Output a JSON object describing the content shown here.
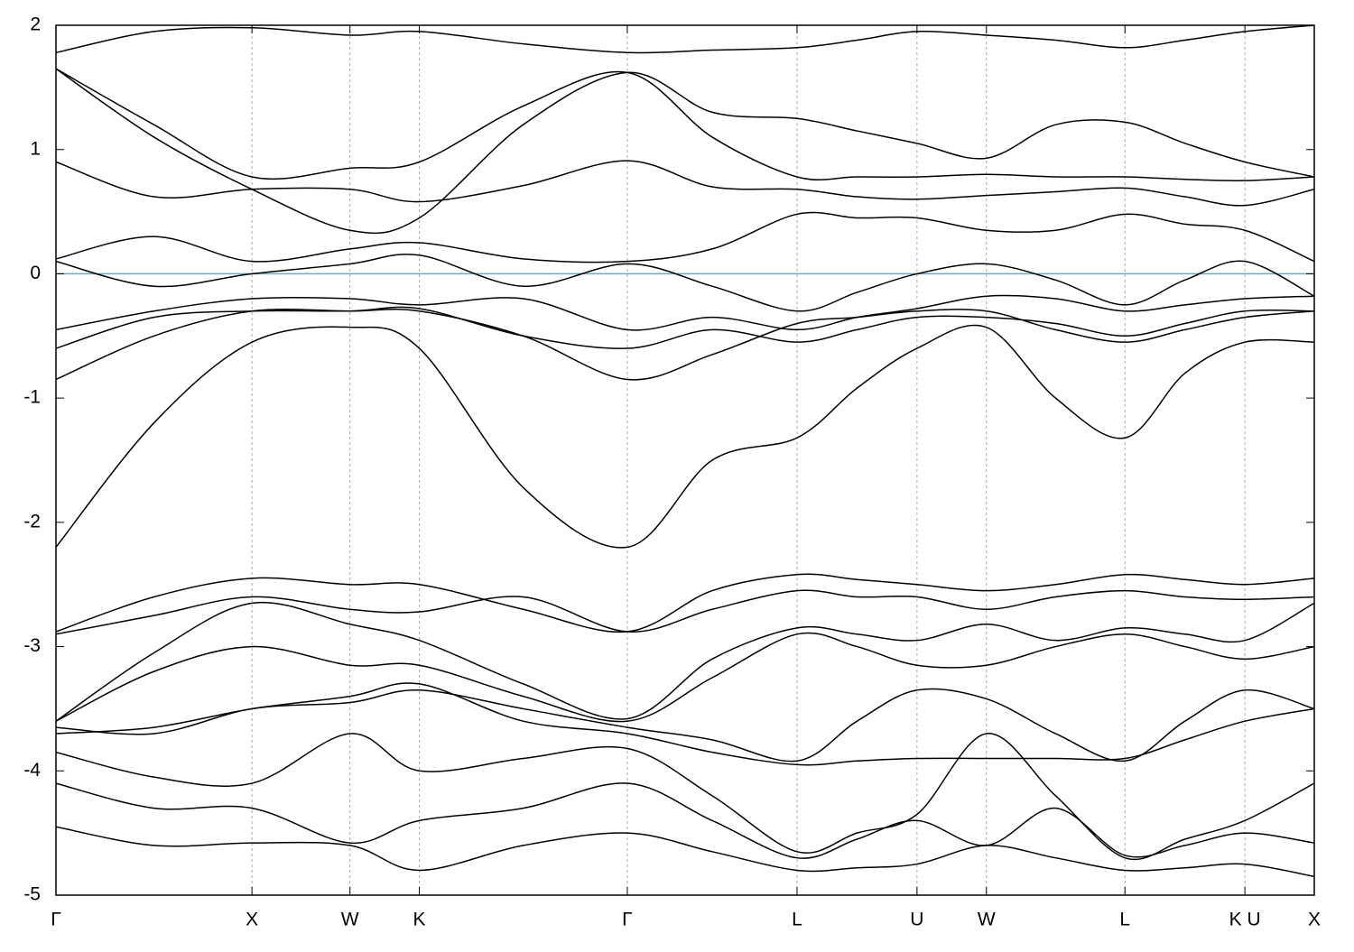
{
  "chart_data": {
    "type": "line",
    "x": [
      0,
      0.5,
      1,
      1.5,
      1.854,
      2.384,
      2.915,
      3.348,
      3.781,
      4.087,
      4.393,
      4.747,
      5.1,
      5.454,
      5.76,
      6.066,
      6.42
    ],
    "xlim": [
      0,
      6.42
    ],
    "xticks": [
      {
        "value": 0,
        "label": "Γ"
      },
      {
        "value": 1,
        "label": "X"
      },
      {
        "value": 1.5,
        "label": "W"
      },
      {
        "value": 1.854,
        "label": "K"
      },
      {
        "value": 2.915,
        "label": "Γ"
      },
      {
        "value": 3.781,
        "label": "L"
      },
      {
        "value": 4.393,
        "label": "U"
      },
      {
        "value": 4.747,
        "label": "W"
      },
      {
        "value": 5.454,
        "label": "L"
      },
      {
        "value": 6.066,
        "label": "K U"
      },
      {
        "value": 6.42,
        "label": "X"
      }
    ],
    "xgrid": true,
    "ylim": [
      -5,
      2
    ],
    "yticks": [
      -5,
      -4,
      -3,
      -2,
      -1,
      0,
      1,
      2
    ],
    "hline": {
      "value": 0,
      "color": "#5aafc8"
    },
    "series": [
      {
        "color": "#000000",
        "values": [
          -2.2,
          -1.2,
          -0.55,
          -0.43,
          -0.6,
          -1.72,
          -2.2,
          -1.5,
          -1.32,
          -0.92,
          -0.6,
          -0.43,
          -1.0,
          -1.32,
          -0.8,
          -0.55,
          -0.55
        ]
      },
      {
        "color": "#000000",
        "values": [
          0.9,
          0.62,
          0.68,
          0.68,
          0.58,
          0.71,
          0.91,
          0.7,
          0.68,
          0.62,
          0.6,
          0.63,
          0.66,
          0.69,
          0.62,
          0.55,
          0.68
        ]
      },
      {
        "color": "#000000",
        "values": [
          1.65,
          1.2,
          0.78,
          0.85,
          0.9,
          1.35,
          1.62,
          1.1,
          0.78,
          0.78,
          0.78,
          0.8,
          0.78,
          0.78,
          0.76,
          0.75,
          0.78
        ]
      },
      {
        "color": "#000000",
        "values": [
          1.78,
          1.95,
          1.98,
          1.92,
          1.95,
          1.85,
          1.78,
          1.8,
          1.82,
          1.88,
          1.95,
          1.92,
          1.88,
          1.82,
          1.88,
          1.95,
          2.0
        ]
      },
      {
        "color": "#000000",
        "values": [
          1.65,
          1.1,
          0.68,
          0.35,
          0.45,
          1.2,
          1.62,
          1.3,
          1.25,
          1.15,
          1.05,
          0.93,
          1.2,
          1.22,
          1.05,
          0.9,
          0.78
        ]
      },
      {
        "color": "#000000",
        "values": [
          0.12,
          0.3,
          0.1,
          0.2,
          0.25,
          0.12,
          0.1,
          0.2,
          0.48,
          0.45,
          0.45,
          0.35,
          0.35,
          0.48,
          0.4,
          0.35,
          0.1
        ]
      },
      {
        "color": "#000000",
        "values": [
          0.1,
          -0.1,
          0.0,
          0.08,
          0.15,
          -0.1,
          0.08,
          -0.1,
          -0.3,
          -0.15,
          0.0,
          0.08,
          -0.05,
          -0.25,
          -0.05,
          0.1,
          -0.18
        ]
      },
      {
        "color": "#000000",
        "values": [
          -0.45,
          -0.3,
          -0.2,
          -0.2,
          -0.25,
          -0.2,
          -0.45,
          -0.35,
          -0.45,
          -0.35,
          -0.28,
          -0.18,
          -0.2,
          -0.3,
          -0.25,
          -0.2,
          -0.18
        ]
      },
      {
        "color": "#000000",
        "values": [
          -0.6,
          -0.35,
          -0.3,
          -0.3,
          -0.28,
          -0.5,
          -0.6,
          -0.45,
          -0.55,
          -0.45,
          -0.35,
          -0.35,
          -0.4,
          -0.5,
          -0.4,
          -0.3,
          -0.3
        ]
      },
      {
        "color": "#000000",
        "values": [
          -0.85,
          -0.5,
          -0.3,
          -0.3,
          -0.3,
          -0.5,
          -0.85,
          -0.65,
          -0.4,
          -0.35,
          -0.3,
          -0.3,
          -0.45,
          -0.55,
          -0.45,
          -0.35,
          -0.3
        ]
      },
      {
        "color": "#000000",
        "values": [
          -2.88,
          -2.6,
          -2.45,
          -2.5,
          -2.5,
          -2.7,
          -2.88,
          -2.55,
          -2.42,
          -2.46,
          -2.5,
          -2.55,
          -2.5,
          -2.42,
          -2.46,
          -2.5,
          -2.45
        ]
      },
      {
        "color": "#000000",
        "values": [
          -2.9,
          -2.75,
          -2.6,
          -2.7,
          -2.72,
          -2.6,
          -2.88,
          -2.7,
          -2.55,
          -2.6,
          -2.6,
          -2.7,
          -2.6,
          -2.55,
          -2.6,
          -2.62,
          -2.6
        ]
      },
      {
        "color": "#000000",
        "values": [
          -3.6,
          -3.05,
          -2.65,
          -2.82,
          -2.95,
          -3.3,
          -3.58,
          -3.1,
          -2.85,
          -2.9,
          -2.95,
          -2.82,
          -2.95,
          -2.85,
          -2.9,
          -2.95,
          -2.65
        ]
      },
      {
        "color": "#000000",
        "values": [
          -3.6,
          -3.2,
          -3.0,
          -3.15,
          -3.15,
          -3.4,
          -3.6,
          -3.25,
          -2.9,
          -3.0,
          -3.15,
          -3.15,
          -3.0,
          -2.9,
          -3.0,
          -3.1,
          -3.0
        ]
      },
      {
        "color": "#000000",
        "values": [
          -3.65,
          -3.7,
          -3.5,
          -3.45,
          -3.35,
          -3.5,
          -3.65,
          -3.75,
          -3.92,
          -3.6,
          -3.35,
          -3.42,
          -3.7,
          -3.92,
          -3.6,
          -3.35,
          -3.5
        ]
      },
      {
        "color": "#000000",
        "values": [
          -3.7,
          -3.65,
          -3.5,
          -3.4,
          -3.3,
          -3.6,
          -3.7,
          -3.85,
          -3.95,
          -3.92,
          -3.9,
          -3.9,
          -3.9,
          -3.9,
          -3.75,
          -3.6,
          -3.5
        ]
      },
      {
        "color": "#000000",
        "values": [
          -3.85,
          -4.05,
          -4.1,
          -3.7,
          -4.0,
          -3.9,
          -3.82,
          -4.2,
          -4.65,
          -4.5,
          -4.35,
          -3.7,
          -4.2,
          -4.7,
          -4.55,
          -4.4,
          -4.1
        ]
      },
      {
        "color": "#000000",
        "values": [
          -4.1,
          -4.3,
          -4.3,
          -4.58,
          -4.4,
          -4.3,
          -4.1,
          -4.4,
          -4.7,
          -4.55,
          -4.4,
          -4.6,
          -4.3,
          -4.68,
          -4.6,
          -4.5,
          -4.58
        ]
      },
      {
        "color": "#000000",
        "values": [
          -4.45,
          -4.6,
          -4.58,
          -4.6,
          -4.8,
          -4.6,
          -4.5,
          -4.65,
          -4.8,
          -4.78,
          -4.75,
          -4.6,
          -4.7,
          -4.8,
          -4.78,
          -4.75,
          -4.85
        ]
      }
    ]
  }
}
